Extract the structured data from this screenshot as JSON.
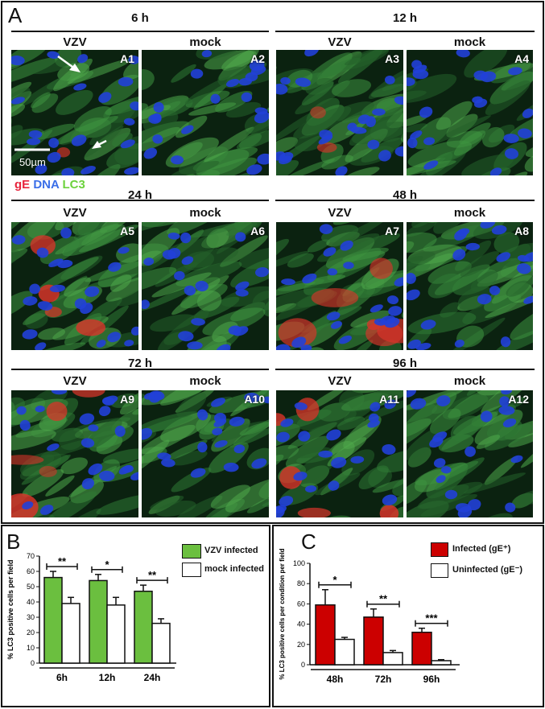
{
  "panel_a": {
    "letter": "A",
    "stain": {
      "ge": "gE",
      "dna": "DNA",
      "lc3": "LC3"
    },
    "scale_bar": "50µm",
    "timepoints": [
      {
        "label": "6 h",
        "images": [
          {
            "cond": "VZV",
            "id": "A1"
          },
          {
            "cond": "mock",
            "id": "A2"
          }
        ]
      },
      {
        "label": "12 h",
        "images": [
          {
            "cond": "VZV",
            "id": "A3"
          },
          {
            "cond": "mock",
            "id": "A4"
          }
        ]
      },
      {
        "label": "24 h",
        "images": [
          {
            "cond": "VZV",
            "id": "A5"
          },
          {
            "cond": "mock",
            "id": "A6"
          }
        ]
      },
      {
        "label": "48 h",
        "images": [
          {
            "cond": "VZV",
            "id": "A7"
          },
          {
            "cond": "mock",
            "id": "A8"
          }
        ]
      },
      {
        "label": "72 h",
        "images": [
          {
            "cond": "VZV",
            "id": "A9"
          },
          {
            "cond": "mock",
            "id": "A10"
          }
        ]
      },
      {
        "label": "96 h",
        "images": [
          {
            "cond": "VZV",
            "id": "A11"
          },
          {
            "cond": "mock",
            "id": "A12"
          }
        ]
      }
    ]
  },
  "colors": {
    "green_bar": "#6bbf3f",
    "red_bar": "#cc0000",
    "open_bar": "#ffffff"
  },
  "chart_data": [
    {
      "panel": "B",
      "type": "bar",
      "ylabel": "% LC3 positive cells per field",
      "ylim": [
        0,
        70
      ],
      "yticks": [
        0,
        10,
        20,
        30,
        40,
        50,
        60,
        70
      ],
      "categories": [
        "6h",
        "12h",
        "24h"
      ],
      "series": [
        {
          "name": "VZV infected",
          "values": [
            56,
            54,
            47
          ],
          "errors": [
            4,
            4,
            4
          ]
        },
        {
          "name": "mock infected",
          "values": [
            39,
            38,
            26
          ],
          "errors": [
            4,
            5,
            3
          ]
        }
      ],
      "significance": [
        "**",
        "*",
        "**"
      ]
    },
    {
      "panel": "C",
      "type": "bar",
      "ylabel": "% LC3 positive cells per condition per field",
      "ylim": [
        0,
        100
      ],
      "yticks": [
        0,
        20,
        40,
        60,
        80,
        100
      ],
      "categories": [
        "48h",
        "72h",
        "96h"
      ],
      "series": [
        {
          "name": "Infected (gE⁺)",
          "values": [
            59,
            47,
            32
          ],
          "errors": [
            15,
            8,
            4
          ]
        },
        {
          "name": "Uninfected (gE⁻)",
          "values": [
            25,
            12,
            4
          ],
          "errors": [
            2,
            2,
            1
          ]
        }
      ],
      "significance": [
        "*",
        "**",
        "***"
      ]
    }
  ]
}
